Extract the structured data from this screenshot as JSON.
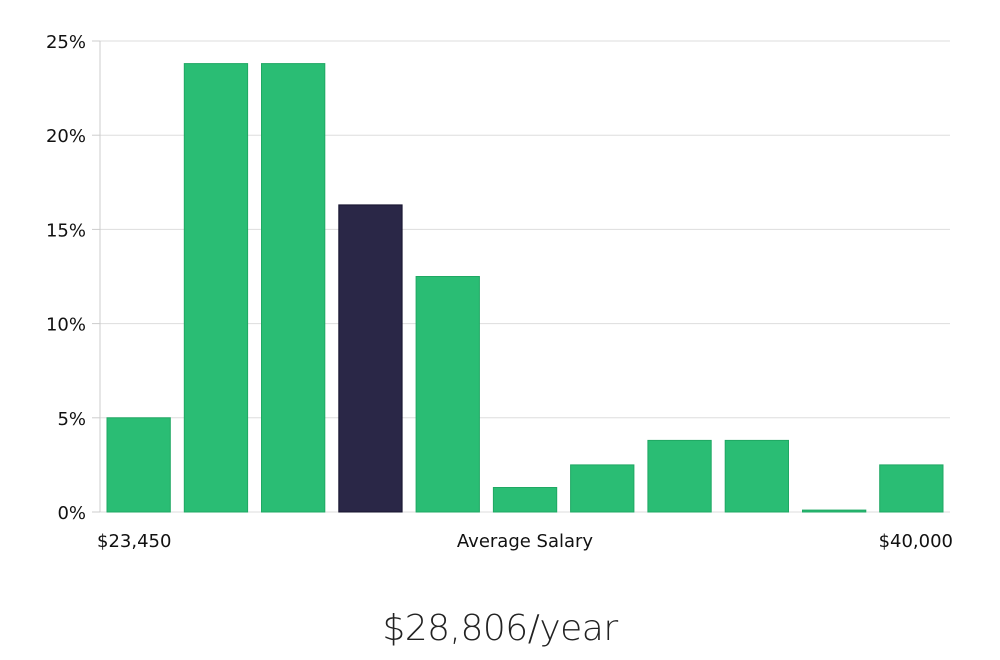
{
  "chart_data": {
    "type": "bar",
    "xlabel": "Average Salary",
    "x_range_labels": [
      "$23,450",
      "$40,000"
    ],
    "y_ticks": [
      "0%",
      "5%",
      "10%",
      "15%",
      "20%",
      "25%"
    ],
    "ylim": [
      0,
      25
    ],
    "grid": true,
    "values": [
      5.0,
      23.8,
      23.8,
      16.3,
      12.5,
      1.3,
      2.5,
      3.8,
      3.8,
      0.1,
      2.5
    ],
    "highlight_index": 3,
    "colors": {
      "bar": "#2abd74",
      "bar_stroke": "#1fa863",
      "highlight": "#2a2747",
      "highlight_stroke": "#15132e",
      "grid": "#dddddd",
      "axis": "#cccccc"
    }
  },
  "summary": {
    "salary_label": "$28,806/year"
  }
}
